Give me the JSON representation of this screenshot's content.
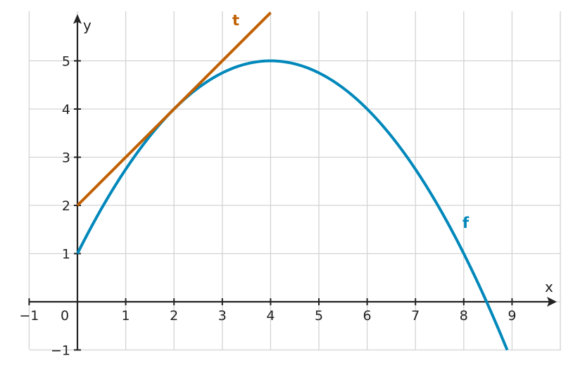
{
  "chart_data": {
    "type": "line",
    "xlabel": "x",
    "ylabel": "y",
    "xlim": [
      -1,
      10
    ],
    "ylim": [
      -1,
      6
    ],
    "grid": true,
    "x_ticks": [
      "−1",
      "0",
      "1",
      "2",
      "3",
      "4",
      "5",
      "6",
      "7",
      "8",
      "9"
    ],
    "y_ticks": [
      "−1",
      "1",
      "2",
      "3",
      "4",
      "5"
    ],
    "series": [
      {
        "name": "f",
        "color": "#0088bb",
        "domain": [
          0,
          8.9
        ],
        "x": [
          0,
          1,
          2,
          3,
          4,
          5,
          6,
          7,
          8,
          8.47,
          8.9
        ],
        "y": [
          1,
          2.75,
          4,
          4.75,
          5,
          4.75,
          4,
          2.75,
          1,
          0,
          -1.05
        ]
      },
      {
        "name": "t",
        "color": "#c06000",
        "domain": [
          0,
          4
        ],
        "x": [
          0,
          2,
          4
        ],
        "y": [
          2,
          4,
          6
        ]
      }
    ]
  }
}
